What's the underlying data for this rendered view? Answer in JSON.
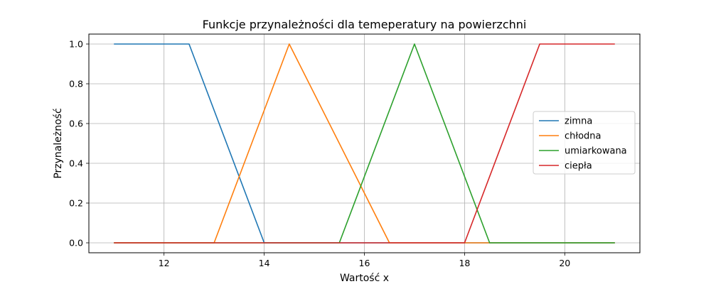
{
  "chart_data": {
    "type": "line",
    "title": "Funkcje przynależności dla temeperatury na powierzchni",
    "xlabel": "Wartość x",
    "ylabel": "Przynależność",
    "xlim": [
      10.5,
      21.5
    ],
    "ylim": [
      -0.05,
      1.05
    ],
    "xticks": [
      12,
      14,
      16,
      18,
      20
    ],
    "yticks": [
      0.0,
      0.2,
      0.4,
      0.6,
      0.8,
      1.0
    ],
    "xtick_labels": [
      "12",
      "14",
      "16",
      "18",
      "20"
    ],
    "ytick_labels": [
      "0.0",
      "0.2",
      "0.4",
      "0.6",
      "0.8",
      "1.0"
    ],
    "grid": true,
    "legend_position": "center-right",
    "series": [
      {
        "name": "zimna",
        "color": "#1f77b4",
        "x": [
          11,
          12.5,
          14,
          21
        ],
        "y": [
          1,
          1,
          0,
          0
        ]
      },
      {
        "name": "chłodna",
        "color": "#ff7f0e",
        "x": [
          11,
          13,
          14.5,
          16.5,
          21
        ],
        "y": [
          0,
          0,
          1,
          0,
          0
        ]
      },
      {
        "name": "umiarkowana",
        "color": "#2ca02c",
        "x": [
          11,
          15.5,
          17,
          18.5,
          21
        ],
        "y": [
          0,
          0,
          1,
          0,
          0
        ]
      },
      {
        "name": "ciepła",
        "color": "#d62728",
        "x": [
          11,
          18,
          19.5,
          21
        ],
        "y": [
          0,
          0,
          1,
          1
        ]
      }
    ]
  }
}
